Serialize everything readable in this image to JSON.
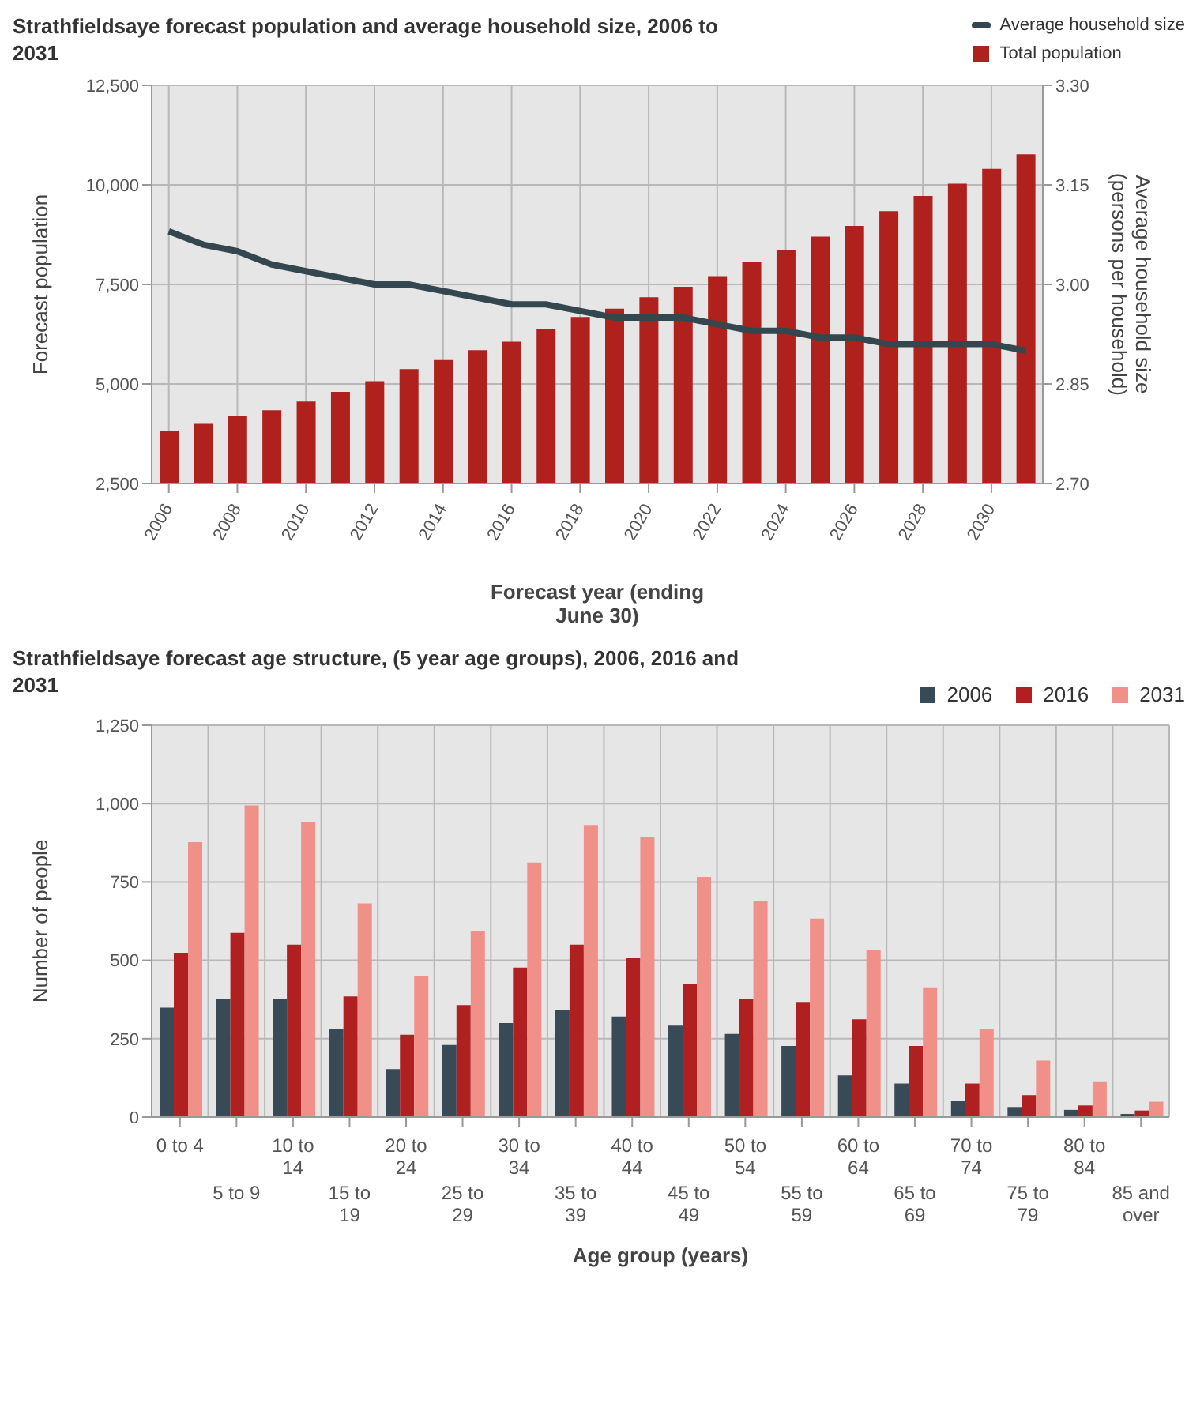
{
  "chart_data": [
    {
      "type": "bar",
      "title": "Strathfieldsaye forecast population and average household size, 2006 to 2031",
      "xlabel": "Forecast year (ending June 30)",
      "ylabel": "Forecast population",
      "y2label": "Average household size (persons per household)",
      "x": [
        2006,
        2007,
        2008,
        2009,
        2010,
        2011,
        2012,
        2013,
        2014,
        2015,
        2016,
        2017,
        2018,
        2019,
        2020,
        2021,
        2022,
        2023,
        2024,
        2025,
        2026,
        2027,
        2028,
        2029,
        2030,
        2031
      ],
      "series": [
        {
          "name": "Average household size",
          "type": "line",
          "axis": "y2",
          "color": "#34474f",
          "values": [
            3.08,
            3.06,
            3.05,
            3.03,
            3.02,
            3.01,
            3.0,
            3.0,
            2.99,
            2.98,
            2.97,
            2.97,
            2.96,
            2.95,
            2.95,
            2.95,
            2.94,
            2.93,
            2.93,
            2.92,
            2.92,
            2.91,
            2.91,
            2.91,
            2.91,
            2.9
          ]
        },
        {
          "name": "Total population",
          "type": "bar",
          "color": "#b0201c",
          "values": [
            3830,
            4000,
            4190,
            4340,
            4560,
            4800,
            5070,
            5370,
            5600,
            5850,
            6060,
            6370,
            6680,
            6890,
            7180,
            7440,
            7710,
            8070,
            8370,
            8700,
            8970,
            9340,
            9720,
            10030,
            10400,
            10770
          ]
        }
      ],
      "xlim": [
        2005.5,
        2031.5
      ],
      "xticks": [
        2006,
        2008,
        2010,
        2012,
        2014,
        2016,
        2018,
        2020,
        2022,
        2024,
        2026,
        2028,
        2030
      ],
      "ylim": [
        2500,
        12500
      ],
      "yticks": [
        {
          "value": 2500,
          "label": "2,500"
        },
        {
          "value": 5000,
          "label": "5,000"
        },
        {
          "value": 7500,
          "label": "7,500"
        },
        {
          "value": 10000,
          "label": "10,000"
        },
        {
          "value": 12500,
          "label": "12,500"
        }
      ],
      "y2lim": [
        2.7,
        3.3
      ],
      "y2ticks": [
        {
          "value": 2.7,
          "label": "2.70"
        },
        {
          "value": 2.85,
          "label": "2.85"
        },
        {
          "value": 3.0,
          "label": "3.00"
        },
        {
          "value": 3.15,
          "label": "3.15"
        },
        {
          "value": 3.3,
          "label": "3.30"
        }
      ],
      "grid": true,
      "legend": "top right",
      "marker": "none",
      "line_style": "solid"
    },
    {
      "type": "bar",
      "title": "Strathfieldsaye forecast age structure, (5 year age groups), 2006, 2016 and 2031",
      "xlabel": "Age group (years)",
      "ylabel": "Number of people",
      "categories": [
        "0 to 4",
        "5 to 9",
        "10 to 14",
        "15 to 19",
        "20 to 24",
        "25 to 29",
        "30 to 34",
        "35 to 39",
        "40 to 44",
        "45 to 49",
        "50 to 54",
        "55 to 59",
        "60 to 64",
        "65 to 69",
        "70 to 74",
        "75 to 79",
        "80 to 84",
        "85 and over"
      ],
      "series": [
        {
          "name": "2006",
          "color": "#374a56",
          "values": [
            349,
            377,
            377,
            281,
            153,
            230,
            300,
            341,
            321,
            292,
            265,
            227,
            133,
            107,
            52,
            32,
            23,
            10
          ]
        },
        {
          "name": "2016",
          "color": "#b02020",
          "values": [
            524,
            588,
            550,
            385,
            263,
            357,
            477,
            550,
            508,
            424,
            378,
            367,
            312,
            227,
            107,
            70,
            37,
            21
          ]
        },
        {
          "name": "2031",
          "color": "#f09088",
          "values": [
            877,
            994,
            942,
            682,
            450,
            594,
            812,
            932,
            893,
            766,
            690,
            633,
            532,
            414,
            282,
            180,
            114,
            49
          ]
        }
      ],
      "ylim": [
        0,
        1250
      ],
      "yticks": [
        0,
        250,
        500,
        750,
        {
          "value": 1000,
          "label": "1,000"
        },
        {
          "value": 1250,
          "label": "1,250"
        }
      ],
      "grid": true,
      "legend": "top right"
    }
  ]
}
